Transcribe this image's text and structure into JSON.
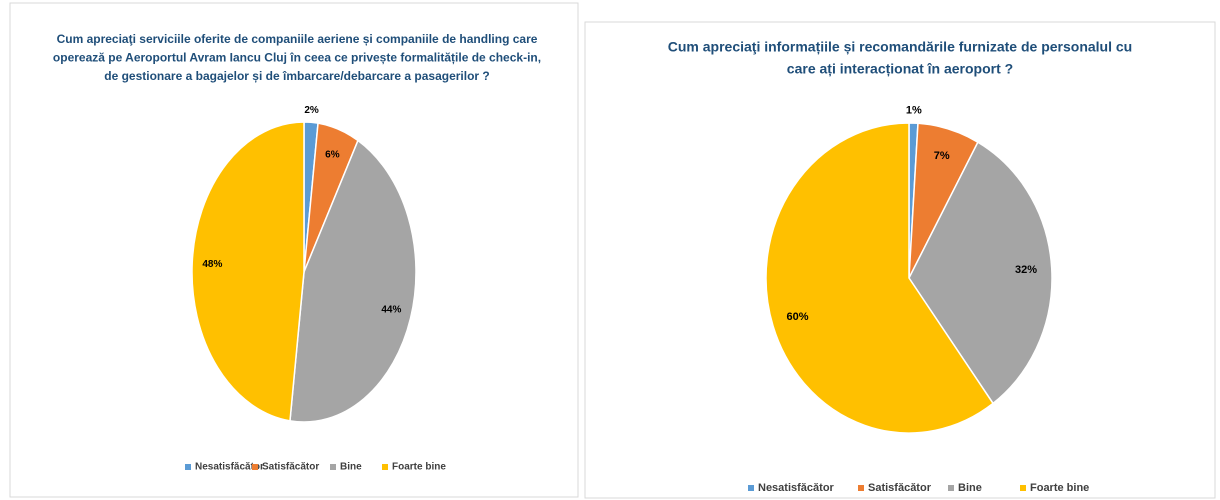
{
  "chart_data": [
    {
      "type": "pie",
      "title": [
        "Cum apreciaţi serviciile oferite de companiile aeriene și companiile de handling care",
        "operează pe Aeroportul Avram Iancu Cluj în ceea ce privește formalitățile de check-in,",
        "de gestionare a bagajelor și de îmbarcare/debarcare a pasagerilor ?"
      ],
      "categories": [
        "Nesatisfăcător",
        "Satisfăcător",
        "Bine",
        "Foarte bine"
      ],
      "values": [
        2,
        6,
        44,
        48
      ],
      "value_labels": [
        "2%",
        "6%",
        "44%",
        "48%"
      ],
      "colors": [
        "#5b9bd5",
        "#ed7d31",
        "#a5a5a5",
        "#ffc000"
      ],
      "legend": "bottom"
    },
    {
      "type": "pie",
      "title": [
        "Cum apreciaţi informațiile și recomandările furnizate de personalul cu",
        "care ați interacționat  în aeroport ?"
      ],
      "categories": [
        "Nesatisfăcător",
        "Satisfăcător",
        "Bine",
        "Foarte bine"
      ],
      "values": [
        1,
        7,
        32,
        60
      ],
      "value_labels": [
        "1%",
        "7%",
        "32%",
        "60%"
      ],
      "colors": [
        "#5b9bd5",
        "#ed7d31",
        "#a5a5a5",
        "#ffc000"
      ],
      "legend": "bottom"
    }
  ]
}
